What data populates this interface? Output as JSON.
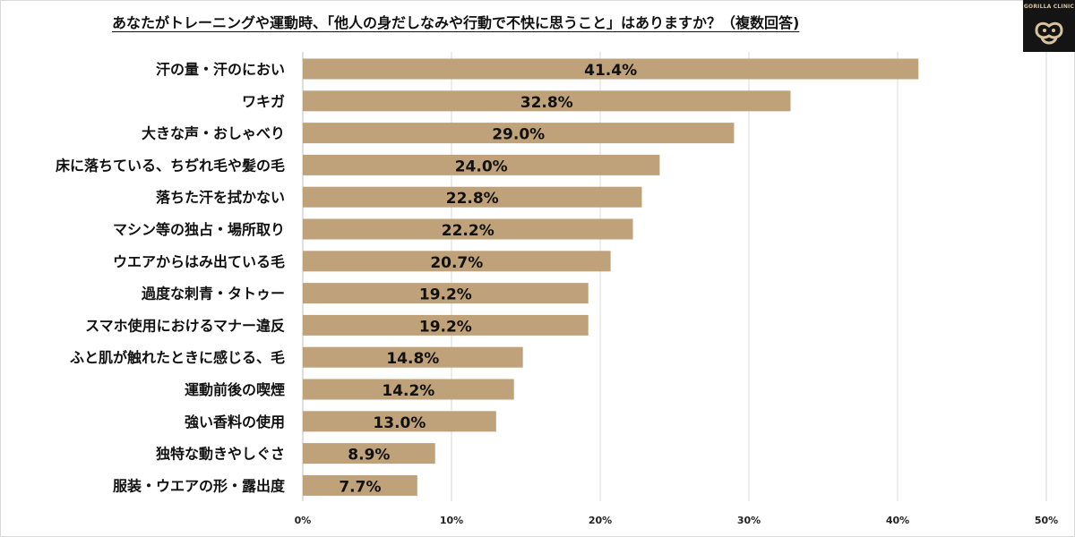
{
  "title": "あなたがトレーニングや運動時、「他人の身だしなみや行動で不快に思うこと」はありますか？（複数回答)",
  "logo": {
    "text": "GORILLA CLINIC",
    "icon": "gorilla-logo-icon"
  },
  "chart_data": {
    "type": "bar",
    "orientation": "horizontal",
    "title": "あなたがトレーニングや運動時、「他人の身だしなみや行動で不快に思うこと」はありますか？（複数回答)",
    "categories": [
      "汗の量・汗のにおい",
      "ワキガ",
      "大きな声・おしゃべり",
      "床に落ちている、ちぢれ毛や髪の毛",
      "落ちた汗を拭かない",
      "マシン等の独占・場所取り",
      "ウエアからはみ出ている毛",
      "過度な刺青・タトゥー",
      "スマホ使用におけるマナー違反",
      "ふと肌が触れたときに感じる、毛",
      "運動前後の喫煙",
      "強い香料の使用",
      "独特な動きやしぐさ",
      "服装・ウエアの形・露出度"
    ],
    "values": [
      41.4,
      32.8,
      29.0,
      24.0,
      22.8,
      22.2,
      20.7,
      19.2,
      19.2,
      14.8,
      14.2,
      13.0,
      8.9,
      7.7
    ],
    "value_labels": [
      "41.4%",
      "32.8%",
      "29.0%",
      "24.0%",
      "22.8%",
      "22.2%",
      "20.7%",
      "19.2%",
      "19.2%",
      "14.8%",
      "14.2%",
      "13.0%",
      "8.9%",
      "7.7%"
    ],
    "xlim": [
      0,
      50
    ],
    "x_ticks": [
      0,
      10,
      20,
      30,
      40,
      50
    ],
    "x_tick_labels": [
      "0%",
      "10%",
      "20%",
      "30%",
      "40%",
      "50%"
    ],
    "bar_color": "#bfa27a",
    "grid": true,
    "legend": "none"
  }
}
